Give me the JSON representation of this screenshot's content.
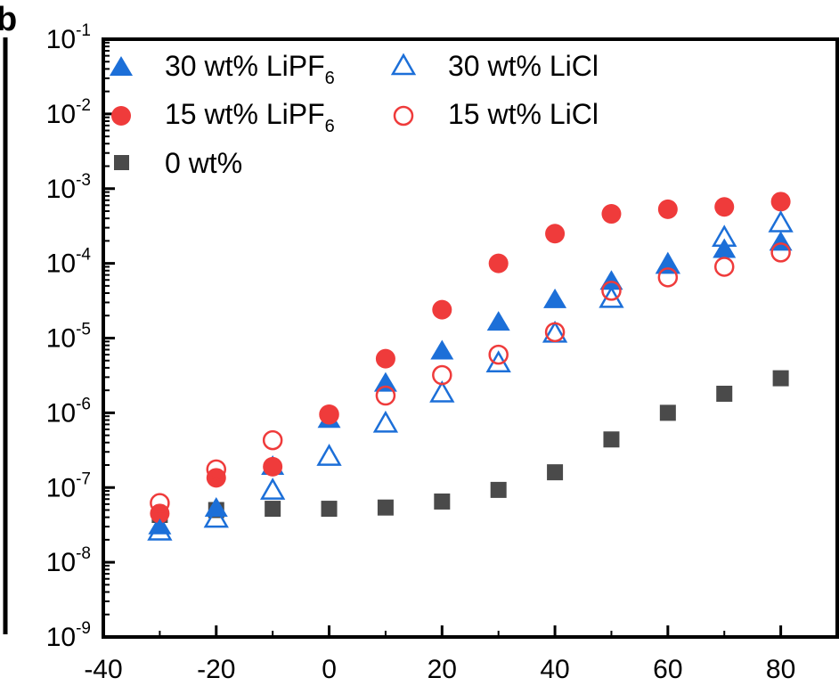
{
  "panel_label": "b",
  "colors": {
    "blue": "#1c6fd8",
    "red": "#ef3b3b",
    "gray": "#4a4a4a",
    "axis": "#000000"
  },
  "chart_data": {
    "type": "scatter",
    "title": "",
    "xlabel": "",
    "ylabel": "",
    "xlim": [
      -40,
      90
    ],
    "xticks": [
      -40,
      -20,
      0,
      20,
      40,
      60,
      80
    ],
    "xtick_labels": [
      "-40",
      "-20",
      "0",
      "20",
      "40",
      "60",
      "80"
    ],
    "yscale": "log",
    "ylim": [
      1e-09,
      0.1
    ],
    "yticks": [
      {
        "base": "10",
        "exp": "-9"
      },
      {
        "base": "10",
        "exp": "-8"
      },
      {
        "base": "10",
        "exp": "-7"
      },
      {
        "base": "10",
        "exp": "-6"
      },
      {
        "base": "10",
        "exp": "-5"
      },
      {
        "base": "10",
        "exp": "-4"
      },
      {
        "base": "10",
        "exp": "-3"
      },
      {
        "base": "10",
        "exp": "-2"
      },
      {
        "base": "10",
        "exp": "-1"
      }
    ],
    "legend_position": "top-left",
    "series": [
      {
        "label_main": "30 wt% LiPF",
        "label_sub": "6",
        "marker": "triangle",
        "filled": true,
        "color": "#1c6fd8",
        "x": [
          -30,
          -20,
          -10,
          0,
          10,
          20,
          30,
          40,
          50,
          60,
          70,
          80
        ],
        "y": [
          3.2e-08,
          5.5e-08,
          2e-07,
          8.5e-07,
          2.6e-06,
          7e-06,
          1.7e-05,
          3.4e-05,
          6e-05,
          0.0001,
          0.00016,
          0.0002
        ]
      },
      {
        "label_main": "30 wt% LiCl",
        "label_sub": "",
        "marker": "triangle",
        "filled": false,
        "color": "#1c6fd8",
        "x": [
          -30,
          -20,
          -10,
          0,
          10,
          20,
          30,
          40,
          50,
          60,
          70,
          80
        ],
        "y": [
          2.7e-08,
          4e-08,
          9.5e-08,
          2.7e-07,
          7.5e-07,
          1.9e-06,
          4.8e-06,
          1.2e-05,
          3.5e-05,
          0.0001,
          0.00023,
          0.00036
        ]
      },
      {
        "label_main": "15 wt% LiPF",
        "label_sub": "6",
        "marker": "circle",
        "filled": true,
        "color": "#ef3b3b",
        "x": [
          -30,
          -20,
          -10,
          0,
          10,
          20,
          30,
          40,
          50,
          60,
          70,
          80
        ],
        "y": [
          4.5e-08,
          1.35e-07,
          1.9e-07,
          9.5e-07,
          5.3e-06,
          2.4e-05,
          0.0001,
          0.00025,
          0.00046,
          0.00053,
          0.00057,
          0.00067
        ]
      },
      {
        "label_main": "15 wt% LiCl",
        "label_sub": "",
        "marker": "circle",
        "filled": false,
        "color": "#ef3b3b",
        "x": [
          -30,
          -20,
          -10,
          0,
          10,
          20,
          30,
          40,
          50,
          60,
          70,
          80
        ],
        "y": [
          6.2e-08,
          1.75e-07,
          4.3e-07,
          9.5e-07,
          1.7e-06,
          3.2e-06,
          6e-06,
          1.2e-05,
          4.3e-05,
          6.5e-05,
          9e-05,
          0.00014
        ]
      },
      {
        "label_main": "0 wt%",
        "label_sub": "",
        "marker": "square",
        "filled": true,
        "color": "#4a4a4a",
        "x": [
          -30,
          -20,
          -10,
          0,
          10,
          20,
          30,
          40,
          50,
          60,
          70,
          80
        ],
        "y": [
          4.3e-08,
          5e-08,
          5.2e-08,
          5.2e-08,
          5.4e-08,
          6.5e-08,
          9.3e-08,
          1.6e-07,
          4.4e-07,
          1e-06,
          1.8e-06,
          2.9e-06
        ]
      }
    ]
  }
}
